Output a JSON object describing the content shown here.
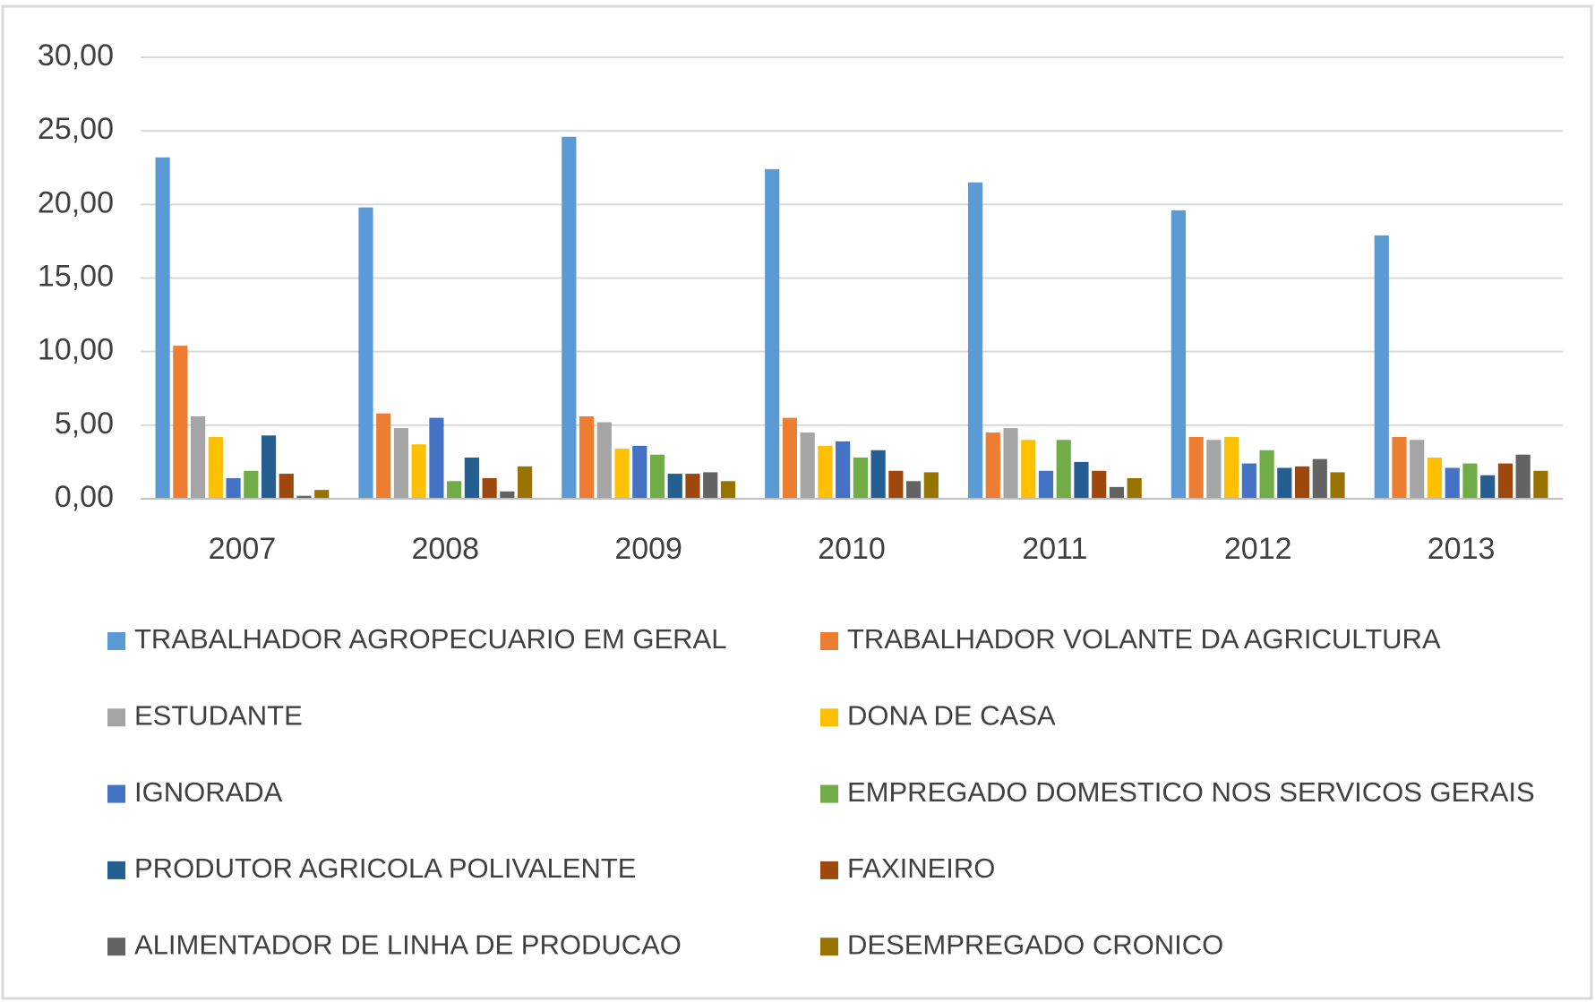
{
  "chart_data": {
    "type": "bar",
    "categories": [
      "2007",
      "2008",
      "2009",
      "2010",
      "2011",
      "2012",
      "2013"
    ],
    "series": [
      {
        "name": "TRABALHADOR AGROPECUARIO EM GERAL",
        "color": "#5b9bd5",
        "values": [
          23.2,
          19.8,
          24.6,
          22.4,
          21.5,
          19.6,
          17.9
        ]
      },
      {
        "name": "TRABALHADOR VOLANTE DA AGRICULTURA",
        "color": "#ed7d31",
        "values": [
          10.4,
          5.8,
          5.6,
          5.5,
          4.5,
          4.2,
          4.2
        ]
      },
      {
        "name": "ESTUDANTE",
        "color": "#a5a5a5",
        "values": [
          5.6,
          4.8,
          5.2,
          4.5,
          4.8,
          4.0,
          4.0
        ]
      },
      {
        "name": "DONA DE CASA",
        "color": "#ffc000",
        "values": [
          4.2,
          3.7,
          3.4,
          3.6,
          4.0,
          4.2,
          2.8
        ]
      },
      {
        "name": "IGNORADA",
        "color": "#4472c4",
        "values": [
          1.4,
          5.5,
          3.6,
          3.9,
          1.9,
          2.4,
          2.1
        ]
      },
      {
        "name": "EMPREGADO DOMESTICO NOS SERVICOS GERAIS",
        "color": "#70ad47",
        "values": [
          1.9,
          1.2,
          3.0,
          2.8,
          4.0,
          3.3,
          2.4
        ]
      },
      {
        "name": "PRODUTOR AGRICOLA POLIVALENTE",
        "color": "#255e91",
        "values": [
          4.3,
          2.8,
          1.7,
          3.3,
          2.5,
          2.1,
          1.6
        ]
      },
      {
        "name": "FAXINEIRO",
        "color": "#9e480e",
        "values": [
          1.7,
          1.4,
          1.7,
          1.9,
          1.9,
          2.2,
          2.4
        ]
      },
      {
        "name": "ALIMENTADOR DE LINHA DE PRODUCAO",
        "color": "#636363",
        "values": [
          0.2,
          0.5,
          1.8,
          1.2,
          0.8,
          2.7,
          3.0
        ]
      },
      {
        "name": "DESEMPREGADO CRONICO",
        "color": "#997300",
        "values": [
          0.6,
          2.2,
          1.2,
          1.8,
          1.4,
          1.8,
          1.9
        ]
      }
    ],
    "ylim": [
      0,
      30
    ],
    "yticks": [
      {
        "value": 0,
        "label": "0,00"
      },
      {
        "value": 5,
        "label": "5,00"
      },
      {
        "value": 10,
        "label": "10,00"
      },
      {
        "value": 15,
        "label": "15,00"
      },
      {
        "value": 20,
        "label": "20,00"
      },
      {
        "value": 25,
        "label": "25,00"
      },
      {
        "value": 30,
        "label": "30,00"
      }
    ],
    "grid": true,
    "legend": "bottom"
  }
}
